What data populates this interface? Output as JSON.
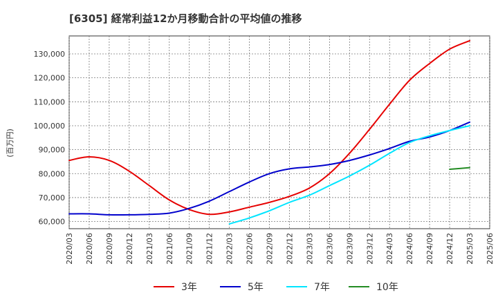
{
  "chart_data": {
    "type": "line",
    "title": "[6305]  経常利益12か月移動合計の平均値の推移",
    "ylabel": "(百万円)",
    "xlabel": "",
    "ylim": [
      57000,
      137500
    ],
    "x_ticks": [
      "2020/03",
      "2020/06",
      "2020/09",
      "2020/12",
      "2021/03",
      "2021/06",
      "2021/09",
      "2021/12",
      "2022/03",
      "2022/06",
      "2022/09",
      "2022/12",
      "2023/03",
      "2023/06",
      "2023/09",
      "2023/12",
      "2024/03",
      "2024/06",
      "2024/09",
      "2024/12",
      "2025/03",
      "2025/06"
    ],
    "y_ticks": [
      60000,
      70000,
      80000,
      90000,
      100000,
      110000,
      120000,
      130000
    ],
    "y_tick_labels": [
      "60,000",
      "70,000",
      "80,000",
      "90,000",
      "100,000",
      "110,000",
      "120,000",
      "130,000"
    ],
    "grid": true,
    "legend_position": "bottom",
    "series": [
      {
        "name": "3年",
        "color": "#e60000",
        "x": [
          "2020/03",
          "2020/06",
          "2020/09",
          "2020/12",
          "2021/03",
          "2021/06",
          "2021/09",
          "2021/12",
          "2022/03",
          "2022/06",
          "2022/09",
          "2022/12",
          "2023/03",
          "2023/06",
          "2023/09",
          "2023/12",
          "2024/03",
          "2024/06",
          "2024/09",
          "2024/12",
          "2025/03"
        ],
        "values": [
          85500,
          87000,
          85500,
          81000,
          75000,
          69000,
          65000,
          63000,
          64000,
          66000,
          68000,
          70500,
          74000,
          80000,
          88500,
          98500,
          109000,
          119000,
          126000,
          132000,
          135500
        ]
      },
      {
        "name": "5年",
        "color": "#0000cc",
        "x": [
          "2020/03",
          "2020/06",
          "2020/09",
          "2020/12",
          "2021/03",
          "2021/06",
          "2021/09",
          "2021/12",
          "2022/03",
          "2022/06",
          "2022/09",
          "2022/12",
          "2023/03",
          "2023/06",
          "2023/09",
          "2023/12",
          "2024/03",
          "2024/06",
          "2024/09",
          "2024/12",
          "2025/03"
        ],
        "values": [
          63200,
          63200,
          62800,
          62800,
          63000,
          63500,
          65500,
          68500,
          72500,
          76500,
          80000,
          82000,
          82800,
          83800,
          85500,
          87800,
          90500,
          93500,
          95300,
          98000,
          101500
        ]
      },
      {
        "name": "7年",
        "color": "#00e5ff",
        "x": [
          "2022/03",
          "2022/06",
          "2022/09",
          "2022/12",
          "2023/03",
          "2023/06",
          "2023/09",
          "2023/12",
          "2024/03",
          "2024/06",
          "2024/09",
          "2024/12",
          "2025/03"
        ],
        "values": [
          59000,
          61500,
          64500,
          68000,
          71000,
          75000,
          79000,
          83500,
          88500,
          93000,
          95800,
          98000,
          100000
        ]
      },
      {
        "name": "10年",
        "color": "#228b22",
        "x": [
          "2024/12",
          "2025/03"
        ],
        "values": [
          81800,
          82500
        ]
      }
    ]
  }
}
